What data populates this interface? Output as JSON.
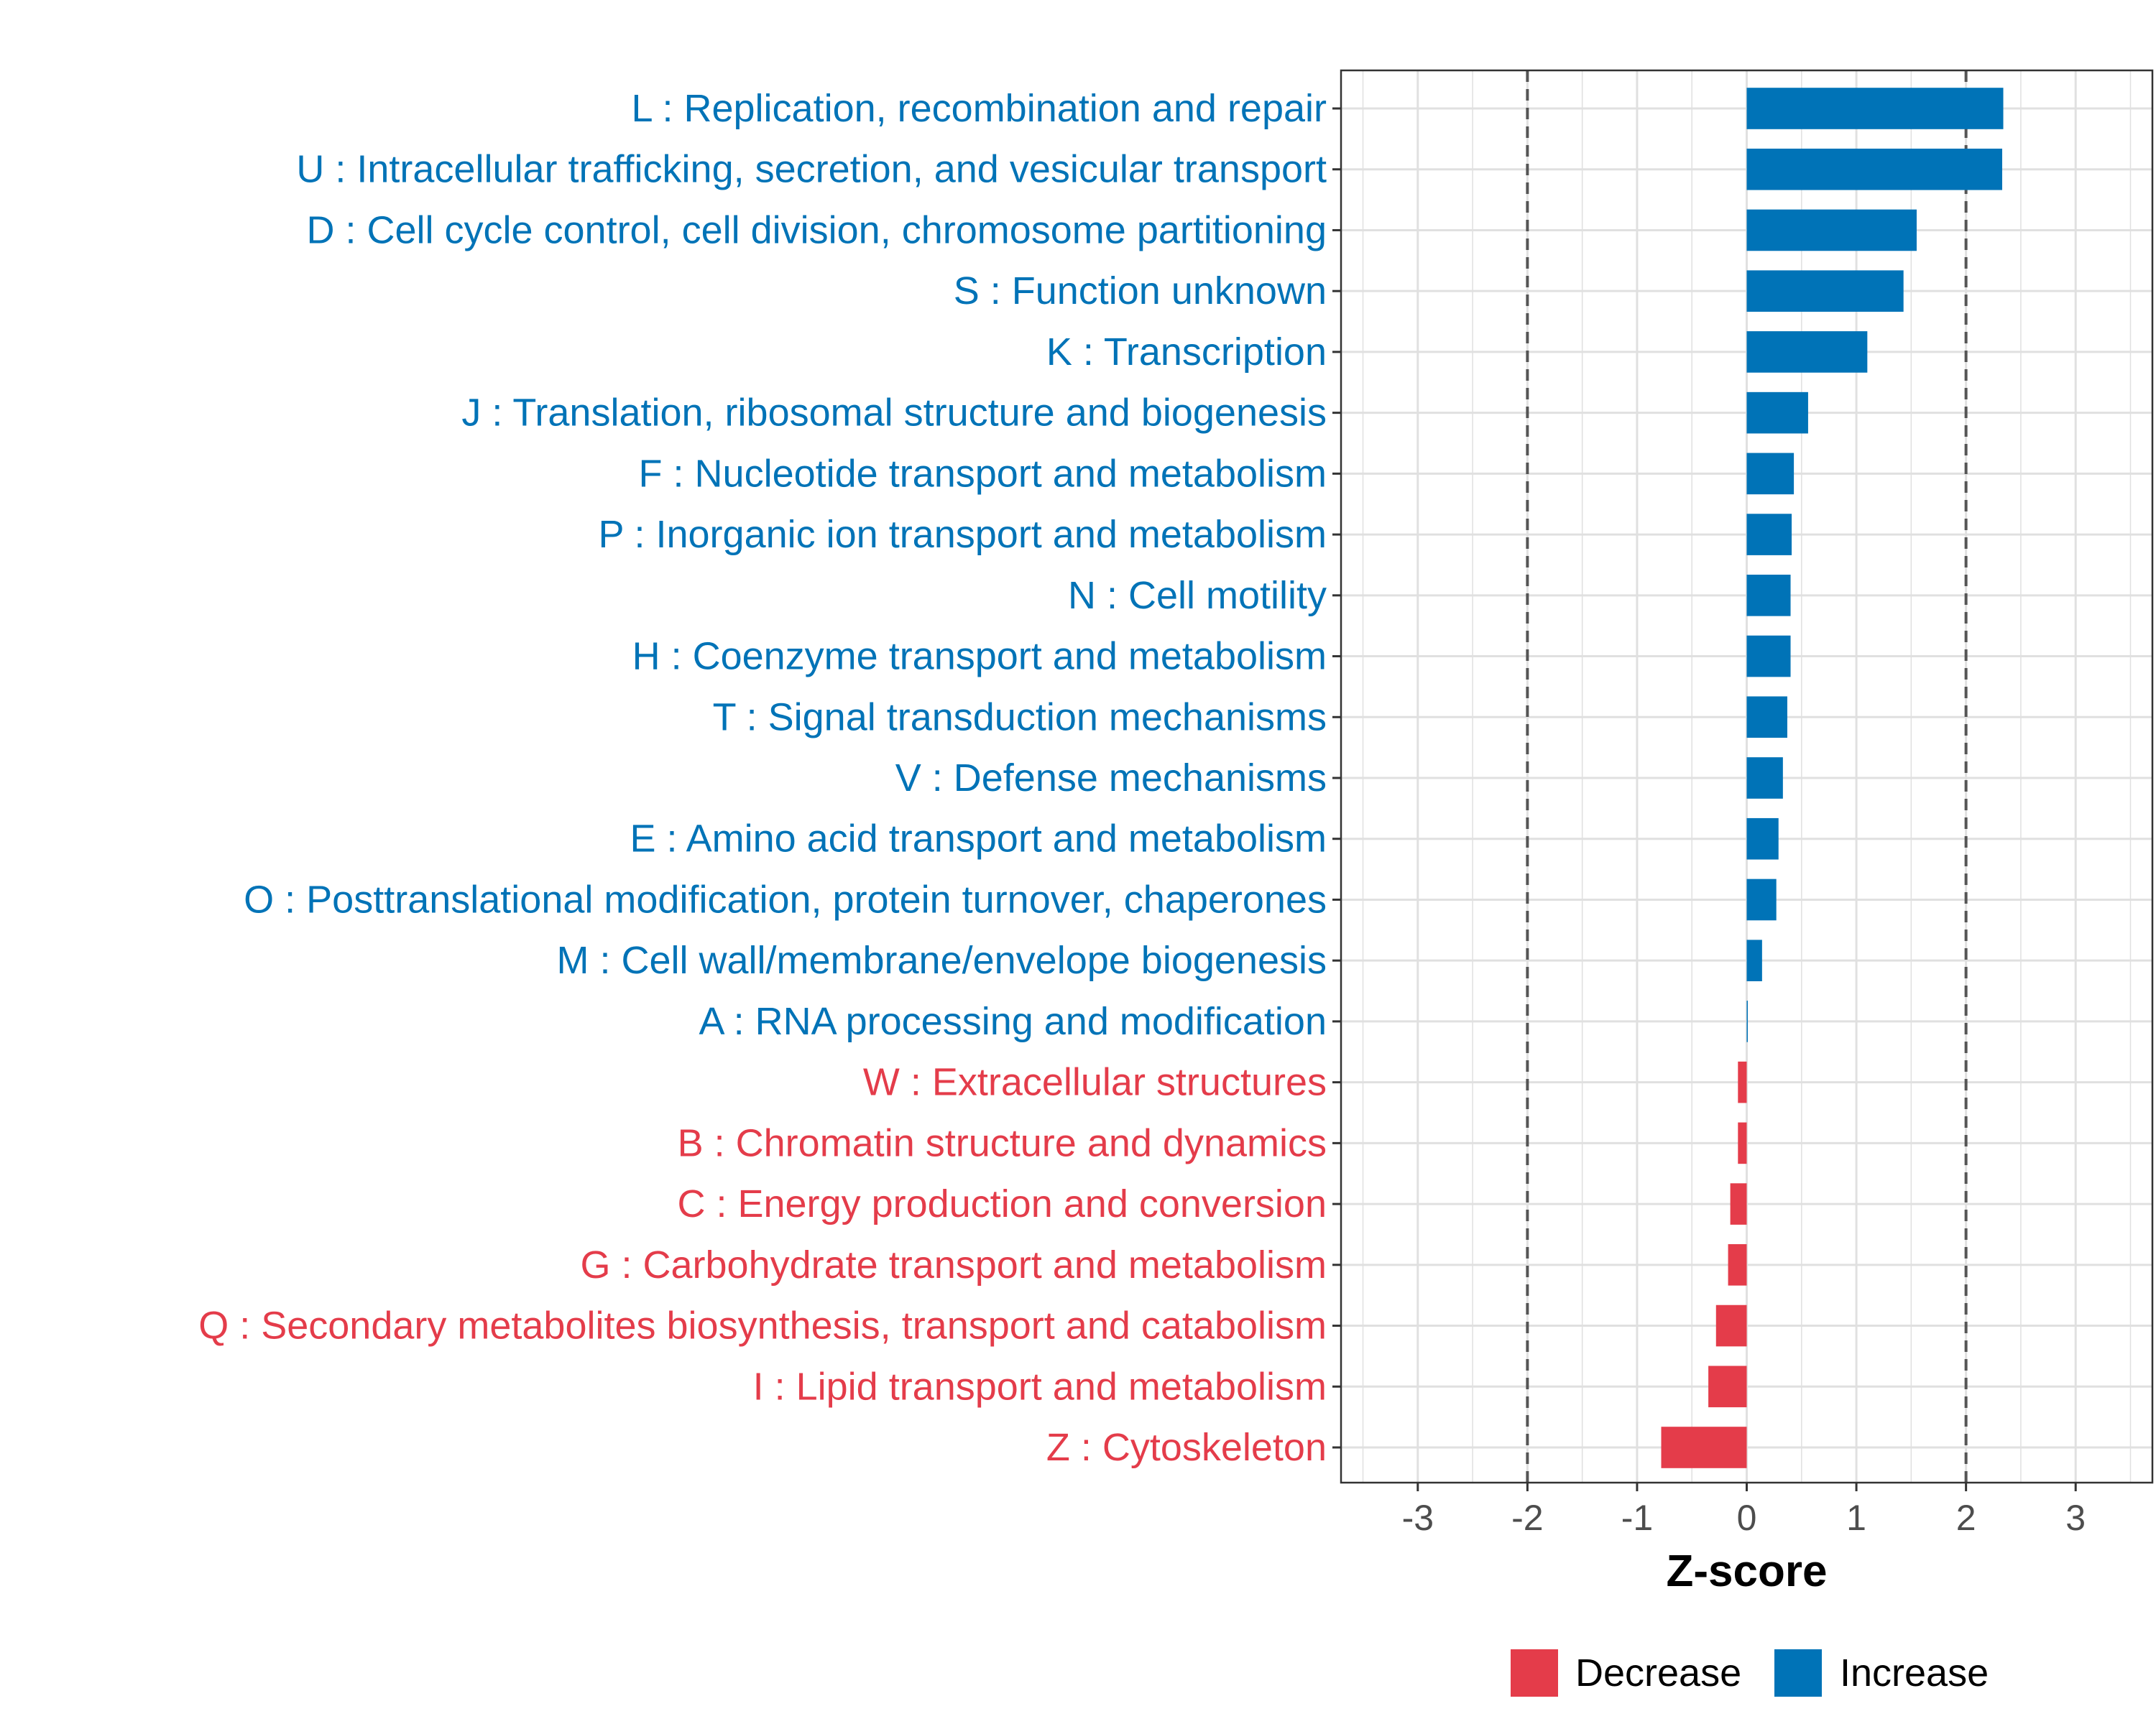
{
  "chart_data": {
    "type": "bar",
    "orientation": "horizontal",
    "title": "",
    "xlabel": "Z-score",
    "ylabel": "",
    "xlim": [
      -3.7,
      3.7
    ],
    "x_ticks": [
      -3,
      -2,
      -1,
      0,
      1,
      2,
      3
    ],
    "x_tick_labels": [
      "-3",
      "-2",
      "-1",
      "0",
      "1",
      "2",
      "3"
    ],
    "reference_lines": [
      -2,
      2
    ],
    "grid": true,
    "legend_position": "bottom",
    "colors": {
      "Increase": "#0073b7",
      "Decrease": "#e43c4a"
    },
    "legend": [
      {
        "label": "Decrease",
        "group": "Decrease"
      },
      {
        "label": "Increase",
        "group": "Increase"
      }
    ],
    "categories": [
      "L : Replication, recombination and repair",
      "U : Intracellular trafficking, secretion, and vesicular transport",
      "D : Cell cycle control, cell division, chromosome partitioning",
      "S : Function unknown",
      "K : Transcription",
      "J : Translation, ribosomal structure and biogenesis",
      "F : Nucleotide transport and metabolism",
      "P : Inorganic ion transport and metabolism",
      "N : Cell motility",
      "H : Coenzyme transport and metabolism",
      "T : Signal transduction mechanisms",
      "V : Defense mechanisms",
      "E : Amino acid transport and metabolism",
      "O : Posttranslational modification, protein turnover, chaperones",
      "M : Cell wall/membrane/envelope biogenesis",
      "A : RNA processing and modification",
      "W : Extracellular structures",
      "B : Chromatin structure and dynamics",
      "C : Energy production and conversion",
      "G : Carbohydrate transport and metabolism",
      "Q : Secondary metabolites biosynthesis, transport and catabolism",
      "I : Lipid transport and metabolism",
      "Z : Cytoskeleton"
    ],
    "values": [
      2.34,
      2.33,
      1.55,
      1.43,
      1.1,
      0.56,
      0.43,
      0.41,
      0.4,
      0.4,
      0.37,
      0.33,
      0.29,
      0.27,
      0.14,
      0.01,
      -0.08,
      -0.08,
      -0.15,
      -0.17,
      -0.28,
      -0.35,
      -0.78
    ],
    "groups": [
      "Increase",
      "Increase",
      "Increase",
      "Increase",
      "Increase",
      "Increase",
      "Increase",
      "Increase",
      "Increase",
      "Increase",
      "Increase",
      "Increase",
      "Increase",
      "Increase",
      "Increase",
      "Increase",
      "Decrease",
      "Decrease",
      "Decrease",
      "Decrease",
      "Decrease",
      "Decrease",
      "Decrease"
    ]
  }
}
